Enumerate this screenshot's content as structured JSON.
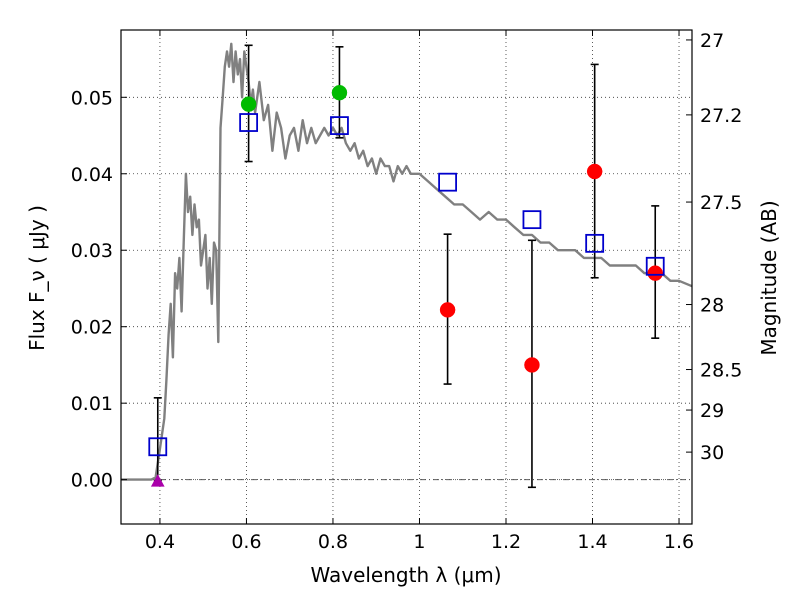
{
  "chart_data": {
    "type": "scatter",
    "xlabel": "Wavelength  λ (μm)",
    "ylabel": "Flux  F_ν  ( μJy )",
    "ylabel_right": "Magnitude (AB)",
    "xlim": [
      0.31,
      1.63
    ],
    "ylim": [
      -0.0058,
      0.0588
    ],
    "x_ticks": [
      0.4,
      0.6,
      0.8,
      1.0,
      1.2,
      1.4,
      1.6
    ],
    "x_tick_labels": [
      "0.4",
      "0.6",
      "0.8",
      "1",
      "1.2",
      "1.4",
      "1.6"
    ],
    "y_ticks": [
      0.0,
      0.01,
      0.02,
      0.03,
      0.04,
      0.05
    ],
    "y_tick_labels": [
      "0.00",
      "0.01",
      "0.02",
      "0.03",
      "0.04",
      "0.05"
    ],
    "right_ticks": [
      {
        "label": "27",
        "flux": 0.0575
      },
      {
        "label": "27.2",
        "flux": 0.0477
      },
      {
        "label": "27.5",
        "flux": 0.0363
      },
      {
        "label": "28",
        "flux": 0.0229
      },
      {
        "label": "28.5",
        "flux": 0.0144
      },
      {
        "label": "29",
        "flux": 0.0091
      },
      {
        "label": "30",
        "flux": 0.0036
      }
    ],
    "grid": true,
    "zero_line": 0.0,
    "colors": {
      "model": "#808080",
      "observed": "#ff0000",
      "green_points": "#00bb00",
      "model_squares": "#0000cc",
      "upper_limit": "#aa00aa",
      "errorbar": "#000000"
    },
    "series": [
      {
        "name": "model-spectrum",
        "type": "line",
        "x": [
          0.31,
          0.38,
          0.39,
          0.4,
          0.41,
          0.415,
          0.42,
          0.425,
          0.43,
          0.435,
          0.44,
          0.445,
          0.45,
          0.455,
          0.46,
          0.465,
          0.47,
          0.475,
          0.48,
          0.485,
          0.49,
          0.495,
          0.5,
          0.505,
          0.51,
          0.515,
          0.52,
          0.525,
          0.53,
          0.535,
          0.54,
          0.545,
          0.55,
          0.555,
          0.56,
          0.565,
          0.57,
          0.575,
          0.58,
          0.585,
          0.59,
          0.595,
          0.6,
          0.605,
          0.61,
          0.615,
          0.62,
          0.63,
          0.64,
          0.65,
          0.66,
          0.67,
          0.68,
          0.69,
          0.7,
          0.71,
          0.72,
          0.73,
          0.74,
          0.75,
          0.76,
          0.77,
          0.78,
          0.79,
          0.8,
          0.81,
          0.82,
          0.83,
          0.84,
          0.85,
          0.86,
          0.87,
          0.88,
          0.89,
          0.9,
          0.91,
          0.92,
          0.93,
          0.94,
          0.95,
          0.96,
          0.97,
          0.98,
          0.99,
          1.0,
          1.02,
          1.04,
          1.06,
          1.08,
          1.1,
          1.12,
          1.14,
          1.16,
          1.18,
          1.2,
          1.22,
          1.24,
          1.26,
          1.28,
          1.3,
          1.32,
          1.34,
          1.36,
          1.38,
          1.4,
          1.42,
          1.44,
          1.46,
          1.48,
          1.5,
          1.52,
          1.54,
          1.56,
          1.58,
          1.6,
          1.63
        ],
        "y": [
          0.0,
          0.0,
          0.0003,
          0.004,
          0.008,
          0.013,
          0.019,
          0.023,
          0.016,
          0.027,
          0.025,
          0.029,
          0.022,
          0.031,
          0.04,
          0.035,
          0.037,
          0.032,
          0.036,
          0.033,
          0.034,
          0.028,
          0.03,
          0.032,
          0.025,
          0.029,
          0.023,
          0.031,
          0.03,
          0.018,
          0.046,
          0.05,
          0.054,
          0.056,
          0.054,
          0.057,
          0.052,
          0.056,
          0.053,
          0.055,
          0.05,
          0.056,
          0.054,
          0.052,
          0.049,
          0.051,
          0.048,
          0.052,
          0.047,
          0.049,
          0.043,
          0.048,
          0.046,
          0.042,
          0.045,
          0.046,
          0.043,
          0.047,
          0.044,
          0.046,
          0.044,
          0.045,
          0.046,
          0.045,
          0.046,
          0.045,
          0.046,
          0.044,
          0.043,
          0.044,
          0.042,
          0.043,
          0.041,
          0.042,
          0.04,
          0.042,
          0.041,
          0.041,
          0.039,
          0.041,
          0.04,
          0.041,
          0.04,
          0.04,
          0.04,
          0.039,
          0.038,
          0.037,
          0.036,
          0.036,
          0.035,
          0.034,
          0.035,
          0.034,
          0.034,
          0.033,
          0.032,
          0.032,
          0.031,
          0.031,
          0.03,
          0.03,
          0.03,
          0.029,
          0.029,
          0.029,
          0.028,
          0.028,
          0.028,
          0.028,
          0.027,
          0.027,
          0.027,
          0.026,
          0.026,
          0.0253
        ]
      },
      {
        "name": "observed-fluxes",
        "type": "scatter",
        "marker": "circle",
        "color": "#ff0000",
        "x": [
          1.065,
          1.26,
          1.405,
          1.545
        ],
        "y": [
          0.0222,
          0.015,
          0.0403,
          0.027
        ]
      },
      {
        "name": "green-fluxes",
        "type": "scatter",
        "marker": "circle",
        "color": "#00bb00",
        "x": [
          0.605,
          0.815
        ],
        "y": [
          0.0491,
          0.0506
        ]
      },
      {
        "name": "model-bandpass-fluxes",
        "type": "scatter",
        "marker": "open-square",
        "color": "#0000cc",
        "x": [
          0.395,
          0.605,
          0.815,
          1.065,
          1.26,
          1.405,
          1.545
        ],
        "y": [
          0.0043,
          0.0467,
          0.0463,
          0.0389,
          0.034,
          0.0309,
          0.0279
        ]
      },
      {
        "name": "upper-limit",
        "type": "scatter",
        "marker": "triangle",
        "color": "#aa00aa",
        "x": [
          0.395
        ],
        "y": [
          -0.0002
        ]
      }
    ],
    "errorbars": [
      {
        "x": 0.395,
        "y_low": -0.0001,
        "y_high": 0.0107
      },
      {
        "x": 0.605,
        "y_low": 0.0416,
        "y_high": 0.0568
      },
      {
        "x": 0.815,
        "y_low": 0.0447,
        "y_high": 0.0566
      },
      {
        "x": 1.065,
        "y_low": 0.0125,
        "y_high": 0.0321
      },
      {
        "x": 1.26,
        "y_low": -0.001,
        "y_high": 0.0313
      },
      {
        "x": 1.405,
        "y_low": 0.0264,
        "y_high": 0.0543
      },
      {
        "x": 1.545,
        "y_low": 0.0185,
        "y_high": 0.0358
      }
    ]
  }
}
